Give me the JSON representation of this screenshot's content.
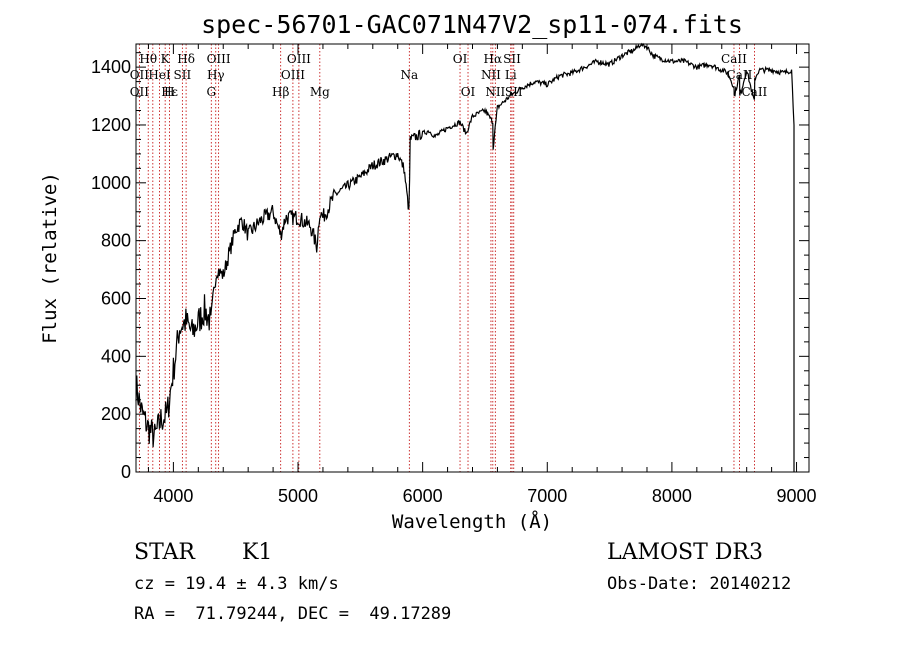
{
  "chart_data": {
    "type": "line",
    "title": "spec-56701-GAC071N47V2_sp11-074.fits",
    "xlabel": "Wavelength (Å)",
    "ylabel": "Flux (relative)",
    "xlim": [
      3700,
      9100
    ],
    "ylim": [
      0,
      1480
    ],
    "grid": false,
    "xticks": [
      4000,
      5000,
      6000,
      7000,
      8000,
      9000
    ],
    "yticks": [
      0,
      200,
      400,
      600,
      800,
      1000,
      1200,
      1400
    ],
    "series": [
      {
        "name": "flux",
        "x": [
          3700,
          3750,
          3800,
          3850,
          3900,
          3950,
          4000,
          4050,
          4100,
          4150,
          4200,
          4250,
          4300,
          4330,
          4350,
          4400,
          4450,
          4500,
          4550,
          4600,
          4700,
          4800,
          4861,
          4900,
          5000,
          5100,
          5150,
          5175,
          5200,
          5300,
          5400,
          5500,
          5600,
          5700,
          5800,
          5850,
          5890,
          5895,
          5900,
          5950,
          6000,
          6050,
          6100,
          6200,
          6300,
          6350,
          6400,
          6450,
          6500,
          6563,
          6565,
          6600,
          6700,
          6800,
          6900,
          7000,
          7100,
          7200,
          7300,
          7400,
          7500,
          7600,
          7700,
          7750,
          7800,
          7850,
          7900,
          8000,
          8100,
          8200,
          8300,
          8400,
          8450,
          8498,
          8500,
          8542,
          8545,
          8600,
          8662,
          8665,
          8700,
          8800,
          8900,
          8960,
          8980
        ],
        "y": [
          300,
          200,
          150,
          120,
          180,
          200,
          350,
          500,
          520,
          480,
          520,
          560,
          520,
          650,
          700,
          680,
          760,
          840,
          870,
          820,
          870,
          900,
          820,
          880,
          880,
          850,
          780,
          900,
          880,
          960,
          990,
          1020,
          1060,
          1080,
          1100,
          1050,
          900,
          1010,
          1150,
          1160,
          1170,
          1180,
          1160,
          1190,
          1210,
          1170,
          1230,
          1240,
          1250,
          1210,
          1120,
          1260,
          1300,
          1330,
          1350,
          1340,
          1370,
          1380,
          1400,
          1420,
          1410,
          1440,
          1460,
          1480,
          1470,
          1440,
          1430,
          1420,
          1420,
          1400,
          1410,
          1390,
          1380,
          1330,
          1300,
          1370,
          1300,
          1390,
          1280,
          1360,
          1390,
          1390,
          1380,
          1390,
          1200
        ]
      }
    ],
    "line_labels": [
      {
        "label": "Hθ",
        "x": 3798,
        "row": 1
      },
      {
        "label": "K",
        "x": 3934,
        "row": 1
      },
      {
        "label": "Hδ",
        "x": 4102,
        "row": 1
      },
      {
        "label": "OIII",
        "x": 4363,
        "row": 1
      },
      {
        "label": "OIII",
        "x": 5007,
        "row": 1
      },
      {
        "label": "OI",
        "x": 6300,
        "row": 1
      },
      {
        "label": "Hα",
        "x": 6563,
        "row": 1
      },
      {
        "label": "SII",
        "x": 6717,
        "row": 1
      },
      {
        "label": "CaII",
        "x": 8498,
        "row": 1
      },
      {
        "label": "OII",
        "x": 3727,
        "row": 2
      },
      {
        "label": "HeI",
        "x": 3889,
        "row": 2
      },
      {
        "label": "SII",
        "x": 4072,
        "row": 2
      },
      {
        "label": "Hγ",
        "x": 4340,
        "row": 2
      },
      {
        "label": "OIII",
        "x": 4959,
        "row": 2
      },
      {
        "label": "Na",
        "x": 5893,
        "row": 2
      },
      {
        "label": "NII",
        "x": 6548,
        "row": 2
      },
      {
        "label": "Li",
        "x": 6707,
        "row": 2
      },
      {
        "label": "CaII",
        "x": 8542,
        "row": 2
      },
      {
        "label": "OII",
        "x": 3727,
        "row": 3
      },
      {
        "label": "Hε",
        "x": 3970,
        "row": 3
      },
      {
        "label": "H",
        "x": 3968,
        "row": 3
      },
      {
        "label": "G",
        "x": 4304,
        "row": 3
      },
      {
        "label": "Hβ",
        "x": 4861,
        "row": 3
      },
      {
        "label": "Mg",
        "x": 5175,
        "row": 3
      },
      {
        "label": "OI",
        "x": 6364,
        "row": 3
      },
      {
        "label": "NII",
        "x": 6583,
        "row": 3
      },
      {
        "label": "SII",
        "x": 6731,
        "row": 3
      },
      {
        "label": "CaII",
        "x": 8662,
        "row": 3
      }
    ],
    "line_markers": [
      3727,
      3798,
      3835,
      3889,
      3934,
      3968,
      4072,
      4102,
      4304,
      4340,
      4363,
      4861,
      4959,
      5007,
      5175,
      5893,
      6300,
      6364,
      6548,
      6563,
      6583,
      6707,
      6717,
      6731,
      8498,
      8542,
      8662
    ]
  },
  "info": {
    "object_class": "STAR",
    "subclass": "K1",
    "survey": "LAMOST DR3",
    "cz": "cz = 19.4 ± 4.3 km/s",
    "obs_date": "Obs-Date: 20140212",
    "radec": "RA =  71.79244, DEC =  49.17289"
  },
  "colors": {
    "spectrum": "#000000",
    "line_marker": "#c00000",
    "axis": "#000000"
  }
}
